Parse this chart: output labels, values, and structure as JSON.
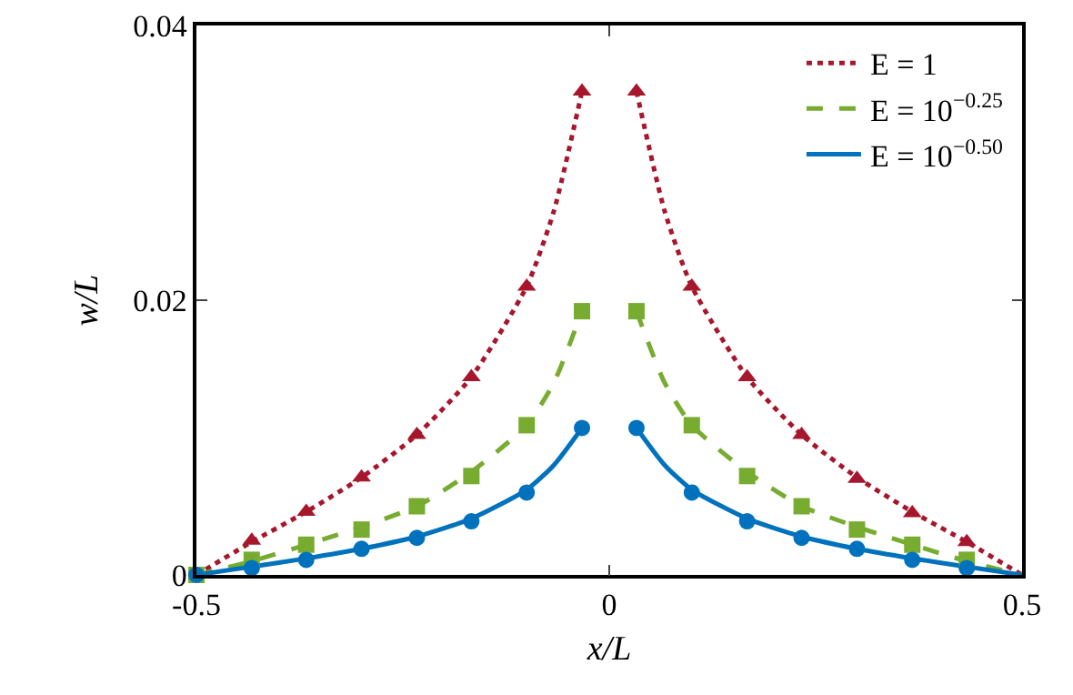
{
  "chart_data": {
    "type": "line",
    "xlabel": "x/L",
    "ylabel": "w/L",
    "xlim": [
      -0.5,
      0.5
    ],
    "xticks": [
      -0.5,
      0,
      0.5
    ],
    "ylim": [
      0,
      0.04
    ],
    "yticks": [
      0,
      0.02,
      0.04
    ],
    "grid": false,
    "legend": "top right",
    "series": [
      {
        "name": "E = 1",
        "color": "#a6172d",
        "line_style": "dotted",
        "marker": "none",
        "x": [
          -0.5,
          -0.433,
          -0.367,
          -0.3,
          -0.233,
          -0.167,
          -0.1,
          -0.067,
          -0.033,
          0,
          0.033,
          0.067,
          0.1,
          0.167,
          0.233,
          0.3,
          0.367,
          0.433,
          0.5
        ],
        "values": [
          0,
          0.0024,
          0.0046,
          0.0071,
          0.0102,
          0.0144,
          0.021,
          0.0265,
          0.0352,
          null,
          0.0352,
          0.0265,
          0.021,
          0.0144,
          0.0102,
          0.0071,
          0.0046,
          0.0024,
          0
        ]
      },
      {
        "name": "E = 10$^{−0.25}$",
        "color": "#77ac30",
        "line_style": "dashed",
        "marker": "none",
        "x": [
          -0.5,
          -0.433,
          -0.367,
          -0.3,
          -0.233,
          -0.167,
          -0.1,
          -0.067,
          -0.033,
          0,
          0.033,
          0.067,
          0.1,
          0.167,
          0.233,
          0.3,
          0.367,
          0.433,
          0.5
        ],
        "values": [
          0,
          0.001,
          0.0022,
          0.0035,
          0.005,
          0.0075,
          0.0109,
          0.014,
          0.0192,
          null,
          0.0192,
          0.014,
          0.0109,
          0.0075,
          0.005,
          0.0035,
          0.0022,
          0.001,
          0
        ]
      },
      {
        "name": "E = 10$^{−0.50}$",
        "color": "#0072bd",
        "line_style": "solid",
        "marker": "none",
        "x": [
          -0.5,
          -0.433,
          -0.367,
          -0.3,
          -0.233,
          -0.167,
          -0.1,
          -0.067,
          -0.033,
          0,
          0.033,
          0.067,
          0.1,
          0.167,
          0.233,
          0.3,
          0.367,
          0.433,
          0.5
        ],
        "values": [
          0,
          0.0006,
          0.0012,
          0.0019,
          0.0028,
          0.0041,
          0.0062,
          0.008,
          0.0107,
          null,
          0.0107,
          0.008,
          0.0062,
          0.0041,
          0.0028,
          0.0019,
          0.0012,
          0.0006,
          0
        ]
      },
      {
        "type": "scatter",
        "color": "#a6172d",
        "marker": "triangle",
        "x": [
          -0.433,
          -0.367,
          -0.3,
          -0.233,
          -0.167,
          -0.1,
          -0.033,
          0.033,
          0.1,
          0.167,
          0.233,
          0.3,
          0.367,
          0.433
        ],
        "values": [
          0.0025,
          0.0046,
          0.0071,
          0.0102,
          0.0144,
          0.021,
          0.0352,
          0.0352,
          0.021,
          0.0144,
          0.0102,
          0.007,
          0.0045,
          0.0024
        ]
      },
      {
        "type": "scatter",
        "color": "#77ac30",
        "marker": "square",
        "x": [
          -0.5,
          -0.433,
          -0.367,
          -0.3,
          -0.233,
          -0.167,
          -0.1,
          -0.033,
          0.033,
          0.1,
          0.167,
          0.233,
          0.3,
          0.367,
          0.433
        ],
        "values": [
          0,
          0.0011,
          0.0022,
          0.0033,
          0.005,
          0.0072,
          0.0109,
          0.0192,
          0.0192,
          0.0109,
          0.0072,
          0.005,
          0.0033,
          0.0022,
          0.0011
        ]
      },
      {
        "type": "scatter",
        "color": "#0072bd",
        "marker": "circle",
        "x": [
          -0.5,
          -0.433,
          -0.367,
          -0.3,
          -0.233,
          -0.167,
          -0.1,
          -0.033,
          0.033,
          0.1,
          0.167,
          0.233,
          0.3,
          0.367,
          0.433
        ],
        "values": [
          0,
          0.0005,
          0.0011,
          0.0019,
          0.0027,
          0.0039,
          0.006,
          0.0107,
          0.0107,
          0.006,
          0.0039,
          0.0027,
          0.0019,
          0.0011,
          0.0005
        ]
      }
    ]
  }
}
